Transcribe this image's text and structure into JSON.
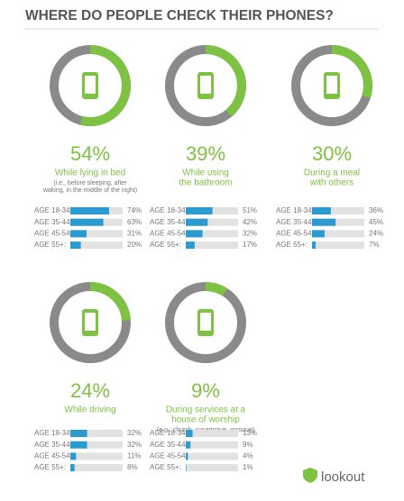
{
  "title": "WHERE DO PEOPLE CHECK THEIR PHONES?",
  "panels": [
    {
      "value": 54,
      "value_label": "54%",
      "caption": [
        "While lying in bed"
      ],
      "note": [
        "(i.e., before sleeping, after",
        "waking, in the middle of the night)"
      ],
      "age_groups": [
        "AGE 18-34:",
        "AGE 35-44:",
        "AGE 45-54:",
        "AGE 55+:"
      ],
      "values": [
        74,
        63,
        31,
        20
      ],
      "value_labels": [
        "74%",
        "63%",
        "31%",
        "20%"
      ]
    },
    {
      "value": 39,
      "value_label": "39%",
      "caption": [
        "While using",
        "the bathroom"
      ],
      "note": [],
      "age_groups": [
        "AGE 18-34:",
        "AGE 35-44:",
        "AGE 45-54:",
        "AGE 55+:"
      ],
      "values": [
        51,
        42,
        32,
        17
      ],
      "value_labels": [
        "51%",
        "42%",
        "32%",
        "17%"
      ]
    },
    {
      "value": 30,
      "value_label": "30%",
      "caption": [
        "During a meal",
        "with others"
      ],
      "note": [],
      "age_groups": [
        "AGE 18-34:",
        "AGE 35-44:",
        "AGE 45-54:",
        "AGE 55+:"
      ],
      "values": [
        36,
        45,
        24,
        7
      ],
      "value_labels": [
        "36%",
        "45%",
        "24%",
        "7%"
      ]
    },
    {
      "value": 24,
      "value_label": "24%",
      "caption": [
        "While driving"
      ],
      "note": [],
      "age_groups": [
        "AGE 18-34:",
        "AGE 35-44:",
        "AGE 45-54:",
        "AGE 55+:"
      ],
      "values": [
        32,
        32,
        11,
        8
      ],
      "value_labels": [
        "32%",
        "32%",
        "11%",
        "8%"
      ]
    },
    {
      "value": 9,
      "value_label": "9%",
      "caption": [
        "During services at a",
        "house of worship"
      ],
      "note": [
        "(e.g., church, synagogue, mosque)"
      ],
      "age_groups": [
        "AGE 18-34:",
        "AGE 35-44:",
        "AGE 45-54:",
        "AGE 55+:"
      ],
      "values": [
        13,
        9,
        4,
        1
      ],
      "value_labels": [
        "13%",
        "9%",
        "4%",
        "1%"
      ]
    }
  ],
  "logo": "lookout"
}
